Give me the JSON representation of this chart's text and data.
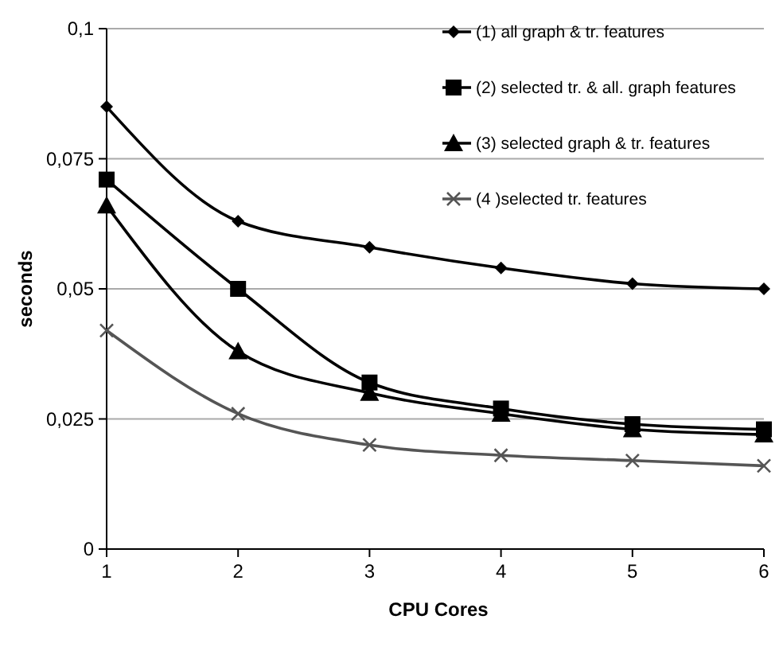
{
  "chart_data": {
    "type": "line",
    "xlabel": "CPU Cores",
    "ylabel": "seconds",
    "x": [
      1,
      2,
      3,
      4,
      5,
      6
    ],
    "xlim": [
      1,
      6
    ],
    "xticks": [
      1,
      2,
      3,
      4,
      5,
      6
    ],
    "ylim": [
      0,
      0.1
    ],
    "yticks": [
      {
        "value": 0,
        "label": "0"
      },
      {
        "value": 0.025,
        "label": "0,025"
      },
      {
        "value": 0.05,
        "label": "0,05"
      },
      {
        "value": 0.075,
        "label": "0,075"
      },
      {
        "value": 0.1,
        "label": "0,1"
      }
    ],
    "grid": "y",
    "legend": "top right",
    "series": [
      {
        "name": "(1) all graph & tr. features",
        "color": "#000000",
        "marker": "diamond",
        "values": [
          0.085,
          0.063,
          0.058,
          0.054,
          0.051,
          0.05
        ]
      },
      {
        "name": "(2) selected tr. & all. graph features",
        "color": "#000000",
        "marker": "square",
        "values": [
          0.071,
          0.05,
          0.032,
          0.027,
          0.024,
          0.023
        ]
      },
      {
        "name": "(3) selected graph & tr. features",
        "color": "#000000",
        "marker": "triangle",
        "values": [
          0.066,
          0.038,
          0.03,
          0.026,
          0.023,
          0.022
        ]
      },
      {
        "name": "(4 )selected tr. features",
        "color": "#555555",
        "marker": "cross",
        "values": [
          0.042,
          0.026,
          0.02,
          0.018,
          0.017,
          0.016
        ]
      }
    ]
  }
}
